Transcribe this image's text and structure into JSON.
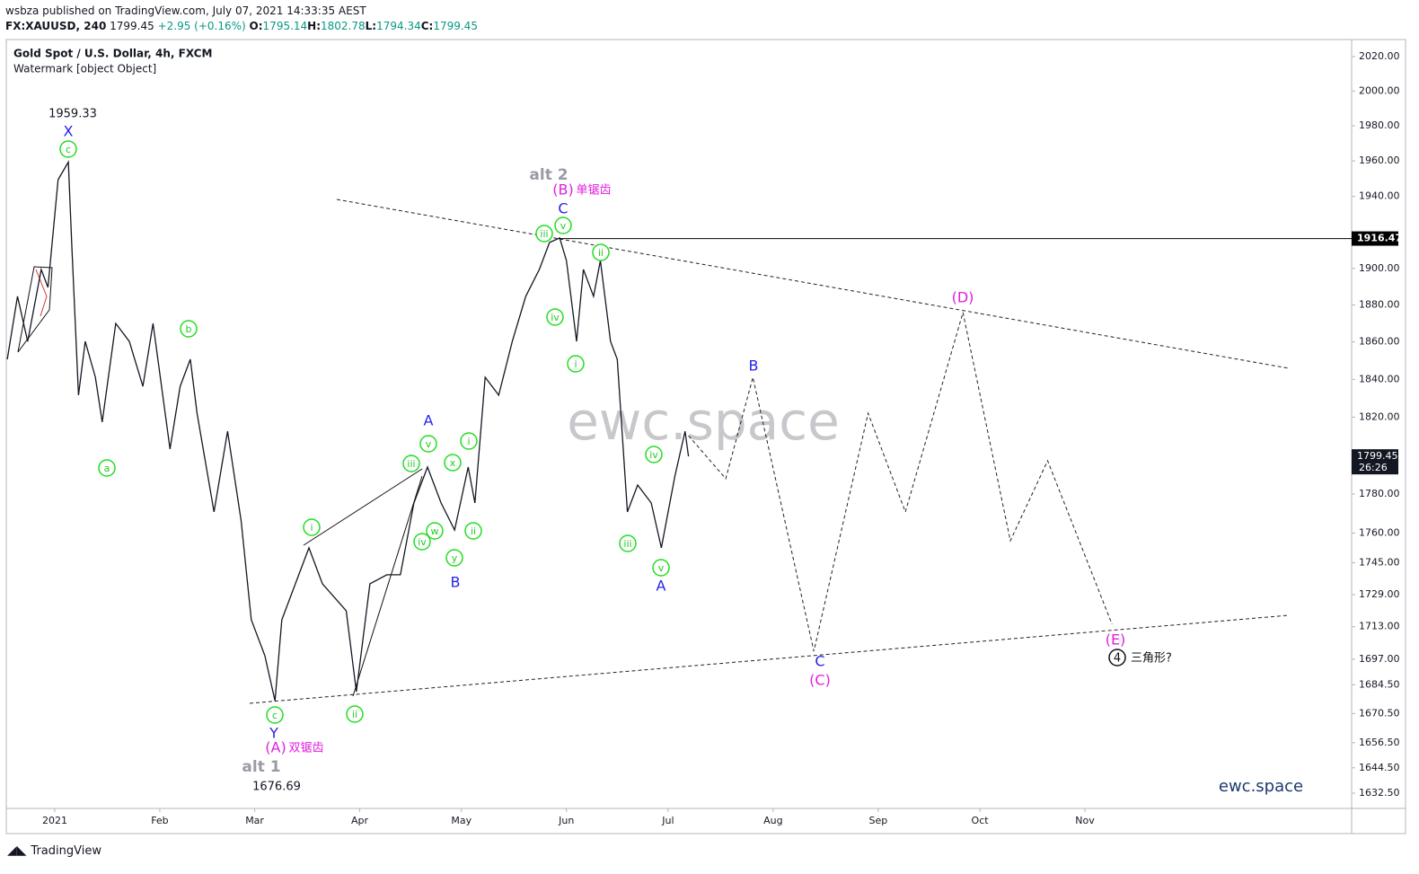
{
  "header": {
    "publisher": "wsbza published on TradingView.com, July 07, 2021 14:33:35 AEST",
    "symbol": "FX:XAUUSD, 240",
    "last": "1799.45",
    "change": "+2.95 (+0.16%)",
    "ohlc": [
      {
        "key": "O:",
        "value": "1795.14"
      },
      {
        "key": "H:",
        "value": "1802.78"
      },
      {
        "key": "L:",
        "value": "1794.34"
      },
      {
        "key": "C:",
        "value": "1799.45"
      }
    ]
  },
  "footer": {
    "brand": "TradingView"
  },
  "chart_data": {
    "type": "line",
    "title": "Gold Spot / U.S. Dollar, 4h, FXCM",
    "subtitle": "Watermark [object Object]",
    "color": "#131722",
    "x": [
      -14,
      -11,
      -8,
      -4,
      -2,
      1,
      4,
      5,
      7,
      9,
      12,
      14,
      18,
      22,
      26,
      29,
      34,
      37,
      40,
      42,
      47,
      51,
      55,
      58,
      62,
      65,
      67,
      71,
      75,
      79,
      86,
      89,
      93,
      98,
      102,
      106,
      110,
      114,
      118,
      122,
      124,
      127,
      131,
      135,
      139,
      143,
      146,
      149,
      151,
      154,
      156,
      159,
      161,
      164,
      166,
      169,
      172,
      176,
      179,
      183,
      186,
      187
    ],
    "values": [
      1850.7,
      1884.7,
      1860.3,
      1899.4,
      1889.6,
      1949.4,
      1959.33,
      1914.3,
      1831.6,
      1860.3,
      1841.1,
      1817.4,
      1870.0,
      1860.3,
      1836.3,
      1870.0,
      1803.3,
      1836.3,
      1850.7,
      1822.1,
      1770.8,
      1812.6,
      1766.2,
      1716.4,
      1698.7,
      1676.69,
      1716.4,
      1734.4,
      1752.5,
      1734.4,
      1720.9,
      1681.1,
      1734.4,
      1738.9,
      1738.9,
      1775.4,
      1793.9,
      1775.4,
      1761.6,
      1793.9,
      1775.4,
      1841.1,
      1831.6,
      1860.3,
      1884.7,
      1899.4,
      1914.3,
      1916.8,
      1904.3,
      1860.3,
      1899.4,
      1884.7,
      1904.3,
      1860.3,
      1850.7,
      1770.8,
      1784.6,
      1775.4,
      1752.5,
      1789.3,
      1812.6,
      1799.45
    ],
    "projection": {
      "x": [
        187,
        198,
        206,
        224,
        240,
        251,
        268,
        282,
        293,
        312
      ],
      "values": [
        1810.3,
        1787.9,
        1841.1,
        1700.9,
        1822.1,
        1770.8,
        1875.9,
        1756.1,
        1797.2,
        1714.2
      ],
      "dashed": true
    },
    "xlim": [
      -14.3,
      382.7
    ],
    "xticks": [
      {
        "value": 0,
        "label": "2021"
      },
      {
        "value": 31,
        "label": "Feb"
      },
      {
        "value": 59,
        "label": "Mar"
      },
      {
        "value": 90,
        "label": "Apr"
      },
      {
        "value": 120,
        "label": "May"
      },
      {
        "value": 151,
        "label": "Jun"
      },
      {
        "value": 181,
        "label": "Jul"
      },
      {
        "value": 212,
        "label": "Aug"
      },
      {
        "value": 243,
        "label": "Sep"
      },
      {
        "value": 273,
        "label": "Oct"
      },
      {
        "value": 304,
        "label": "Nov"
      }
    ],
    "ylim": [
      1625.3,
      2030
    ],
    "log_scale": true,
    "yticks": [
      {
        "value": 2020,
        "label": "2020.00"
      },
      {
        "value": 2000,
        "label": "2000.00"
      },
      {
        "value": 1980,
        "label": "1980.00"
      },
      {
        "value": 1960,
        "label": "1960.00"
      },
      {
        "value": 1940,
        "label": "1940.00"
      },
      {
        "value": 1900,
        "label": "1900.00"
      },
      {
        "value": 1880,
        "label": "1880.00"
      },
      {
        "value": 1860,
        "label": "1860.00"
      },
      {
        "value": 1840,
        "label": "1840.00"
      },
      {
        "value": 1820,
        "label": "1820.00"
      },
      {
        "value": 1780,
        "label": "1780.00"
      },
      {
        "value": 1760,
        "label": "1760.00"
      },
      {
        "value": 1745,
        "label": "1745.00"
      },
      {
        "value": 1729,
        "label": "1729.00"
      },
      {
        "value": 1713,
        "label": "1713.00"
      },
      {
        "value": 1697,
        "label": "1697.00"
      },
      {
        "value": 1684.5,
        "label": "1684.50"
      },
      {
        "value": 1670.5,
        "label": "1670.50"
      },
      {
        "value": 1656.5,
        "label": "1656.50"
      },
      {
        "value": 1644.5,
        "label": "1644.50"
      },
      {
        "value": 1632.5,
        "label": "1632.50"
      }
    ],
    "price_labels": [
      1959.33,
      1676.69
    ],
    "price_line": 1916.47,
    "last_price": 1799.45,
    "countdown": "26:26",
    "watermark": "ewc.space",
    "signature": "ewc.space",
    "wave_labels": [
      {
        "text": "c",
        "style": "green"
      },
      {
        "text": "b",
        "style": "green"
      },
      {
        "text": "a",
        "style": "green"
      },
      {
        "text": "c",
        "style": "green"
      },
      {
        "text": "i",
        "style": "green"
      },
      {
        "text": "ii",
        "style": "green"
      },
      {
        "text": "iii",
        "style": "green"
      },
      {
        "text": "iv",
        "style": "green"
      },
      {
        "text": "v",
        "style": "green"
      },
      {
        "text": "w",
        "style": "green"
      },
      {
        "text": "x",
        "style": "green"
      },
      {
        "text": "y",
        "style": "green"
      },
      {
        "text": "i",
        "style": "green"
      },
      {
        "text": "ii",
        "style": "green"
      },
      {
        "text": "iii",
        "style": "green"
      },
      {
        "text": "v",
        "style": "green"
      },
      {
        "text": "ii",
        "style": "green"
      },
      {
        "text": "iv",
        "style": "green"
      },
      {
        "text": "i",
        "style": "green"
      },
      {
        "text": "iii",
        "style": "green"
      },
      {
        "text": "iv",
        "style": "green"
      },
      {
        "text": "v",
        "style": "green"
      },
      {
        "text": "X",
        "style": "blue"
      },
      {
        "text": "Y",
        "style": "blue"
      },
      {
        "text": "A",
        "style": "blue"
      },
      {
        "text": "B",
        "style": "blue"
      },
      {
        "text": "C",
        "style": "blue"
      },
      {
        "text": "A",
        "style": "blue"
      },
      {
        "text": "B",
        "style": "blue"
      },
      {
        "text": "C",
        "style": "blue"
      },
      {
        "text": "(A)",
        "style": "magenta"
      },
      {
        "text": "双锯齿",
        "style": "magenta-small"
      },
      {
        "text": "(B)",
        "style": "magenta"
      },
      {
        "text": "单锯齿",
        "style": "magenta-small"
      },
      {
        "text": "(C)",
        "style": "magenta"
      },
      {
        "text": "(D)",
        "style": "magenta"
      },
      {
        "text": "(E)",
        "style": "magenta"
      },
      {
        "text": "alt 1",
        "style": "gray"
      },
      {
        "text": "alt 2",
        "style": "gray"
      },
      {
        "text": "4",
        "style": "black-circle"
      },
      {
        "text": "三角形?",
        "style": "black"
      }
    ]
  }
}
